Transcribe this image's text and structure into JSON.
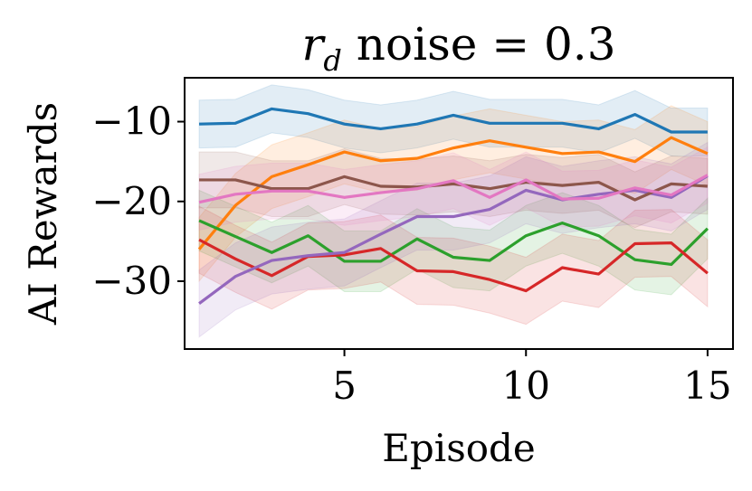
{
  "chart_data": {
    "type": "line",
    "title_main": "r",
    "title_sub": "d",
    "title_rest": " noise = 0.3",
    "xlabel": "Episode",
    "ylabel": "AI Rewards",
    "xlim": [
      0.6,
      15.7
    ],
    "ylim": [
      -38.5,
      -4.5
    ],
    "xticks": [
      5,
      10,
      15
    ],
    "xtick_labels": [
      "5",
      "10",
      "15"
    ],
    "yticks": [
      -10,
      -20,
      -30
    ],
    "ytick_labels": [
      "−10",
      "−20",
      "−30"
    ],
    "grid": false,
    "legend": "none",
    "x": [
      1,
      2,
      3,
      4,
      5,
      6,
      7,
      8,
      9,
      10,
      11,
      12,
      13,
      14,
      15
    ],
    "series": [
      {
        "color": "#1f77b4",
        "values": [
          -10.3,
          -10.2,
          -8.4,
          -9.0,
          -10.3,
          -10.9,
          -10.3,
          -9.2,
          -10.2,
          -10.2,
          -10.2,
          -10.9,
          -9.1,
          -11.3,
          -11.3
        ],
        "band": 3.0
      },
      {
        "color": "#ff7f0e",
        "values": [
          -26.0,
          -20.5,
          -16.9,
          -15.4,
          -13.8,
          -14.9,
          -14.6,
          -13.3,
          -12.4,
          -13.2,
          -14.0,
          -13.8,
          -15.0,
          -12.0,
          -14.0
        ],
        "band": 4.0
      },
      {
        "color": "#2ca02c",
        "values": [
          -22.4,
          -24.4,
          -26.4,
          -24.3,
          -27.5,
          -27.5,
          -24.7,
          -27.0,
          -27.4,
          -24.3,
          -22.7,
          -24.3,
          -27.3,
          -27.9,
          -23.4
        ],
        "band": 3.8
      },
      {
        "color": "#d62728",
        "values": [
          -24.8,
          -27.2,
          -29.3,
          -26.9,
          -26.7,
          -25.9,
          -28.7,
          -28.8,
          -29.8,
          -31.2,
          -28.3,
          -29.1,
          -25.3,
          -25.2,
          -29.0
        ],
        "band": 4.2
      },
      {
        "color": "#9467bd",
        "values": [
          -32.8,
          -29.4,
          -27.4,
          -26.8,
          -26.4,
          -24.1,
          -21.9,
          -21.9,
          -21.0,
          -18.6,
          -19.8,
          -19.1,
          -18.6,
          -19.5,
          -16.8
        ],
        "band": 4.2
      },
      {
        "color": "#8c564b",
        "values": [
          -17.3,
          -17.3,
          -18.4,
          -18.4,
          -16.9,
          -18.1,
          -18.2,
          -17.8,
          -18.4,
          -17.6,
          -18.0,
          -17.6,
          -19.8,
          -17.8,
          -18.1
        ],
        "band": 3.5
      },
      {
        "color": "#e377c2",
        "values": [
          -20.1,
          -19.1,
          -18.7,
          -18.7,
          -19.5,
          -18.9,
          -18.4,
          -17.4,
          -19.5,
          -17.3,
          -19.7,
          -19.6,
          -18.3,
          -19.2,
          -16.7
        ],
        "band": 3.5
      }
    ]
  }
}
